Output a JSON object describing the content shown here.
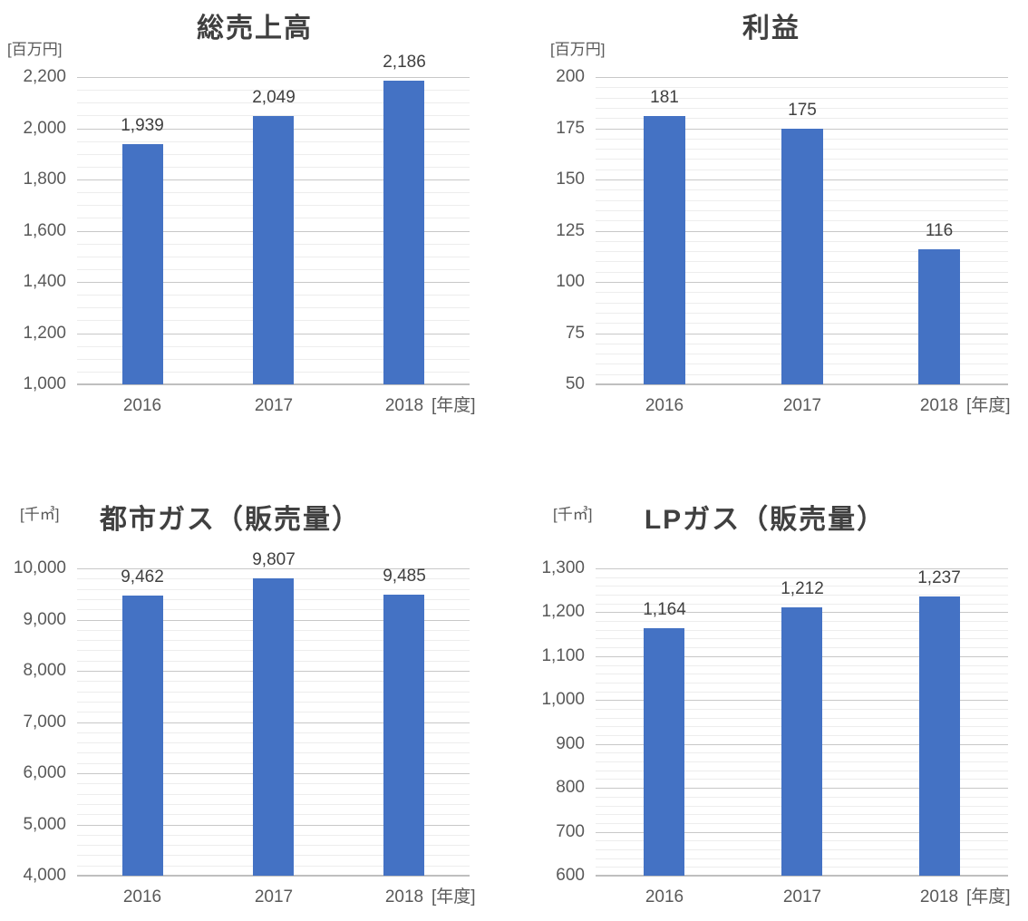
{
  "colors": {
    "bar": "#4472C4",
    "major_gridline": "#C8C8C8",
    "minor_gridline": "#EDEDED",
    "axis_line": "#BFBFBF",
    "title_text": "#404040",
    "tick_text": "#595959",
    "data_label_text": "#404040",
    "background": "#FFFFFF"
  },
  "chart_data": [
    {
      "type": "bar",
      "title": "総売上高",
      "unit_label": "[百万円]",
      "x_suffix": "[年度]",
      "categories": [
        "2016",
        "2017",
        "2018"
      ],
      "values": [
        1939,
        2049,
        2186
      ],
      "data_labels": [
        "1,939",
        "2,049",
        "2,186"
      ],
      "ylim": [
        1000,
        2200
      ],
      "ytick_interval": 200,
      "minor_tick_interval": 50,
      "ytick_labels": [
        "1,000",
        "1,200",
        "1,400",
        "1,600",
        "1,800",
        "2,000",
        "2,200"
      ],
      "grid": "major+minor horizontal",
      "legend": "none"
    },
    {
      "type": "bar",
      "title": "利益",
      "unit_label": "[百万円]",
      "x_suffix": "[年度]",
      "categories": [
        "2016",
        "2017",
        "2018"
      ],
      "values": [
        181,
        175,
        116
      ],
      "data_labels": [
        "181",
        "175",
        "116"
      ],
      "ylim": [
        50,
        200
      ],
      "ytick_interval": 25,
      "minor_tick_interval": 5,
      "ytick_labels": [
        "50",
        "75",
        "100",
        "125",
        "150",
        "175",
        "200"
      ],
      "grid": "major+minor horizontal",
      "legend": "none"
    },
    {
      "type": "bar",
      "title": "都市ガス（販売量）",
      "unit_label": "[千㎥]",
      "x_suffix": "[年度]",
      "categories": [
        "2016",
        "2017",
        "2018"
      ],
      "values": [
        9462,
        9807,
        9485
      ],
      "data_labels": [
        "9,462",
        "9,807",
        "9,485"
      ],
      "ylim": [
        4000,
        10000
      ],
      "ytick_interval": 1000,
      "minor_tick_interval": 200,
      "ytick_labels": [
        "4,000",
        "5,000",
        "6,000",
        "7,000",
        "8,000",
        "9,000",
        "10,000"
      ],
      "grid": "major+minor horizontal",
      "legend": "none"
    },
    {
      "type": "bar",
      "title": "LPガス（販売量）",
      "unit_label": "[千㎥]",
      "x_suffix": "[年度]",
      "categories": [
        "2016",
        "2017",
        "2018"
      ],
      "values": [
        1164,
        1212,
        1237
      ],
      "data_labels": [
        "1,164",
        "1,212",
        "1,237"
      ],
      "ylim": [
        600,
        1300
      ],
      "ytick_interval": 100,
      "minor_tick_interval": 20,
      "ytick_labels": [
        "600",
        "700",
        "800",
        "900",
        "1,000",
        "1,100",
        "1,200",
        "1,300"
      ],
      "grid": "major+minor horizontal",
      "legend": "none"
    }
  ]
}
